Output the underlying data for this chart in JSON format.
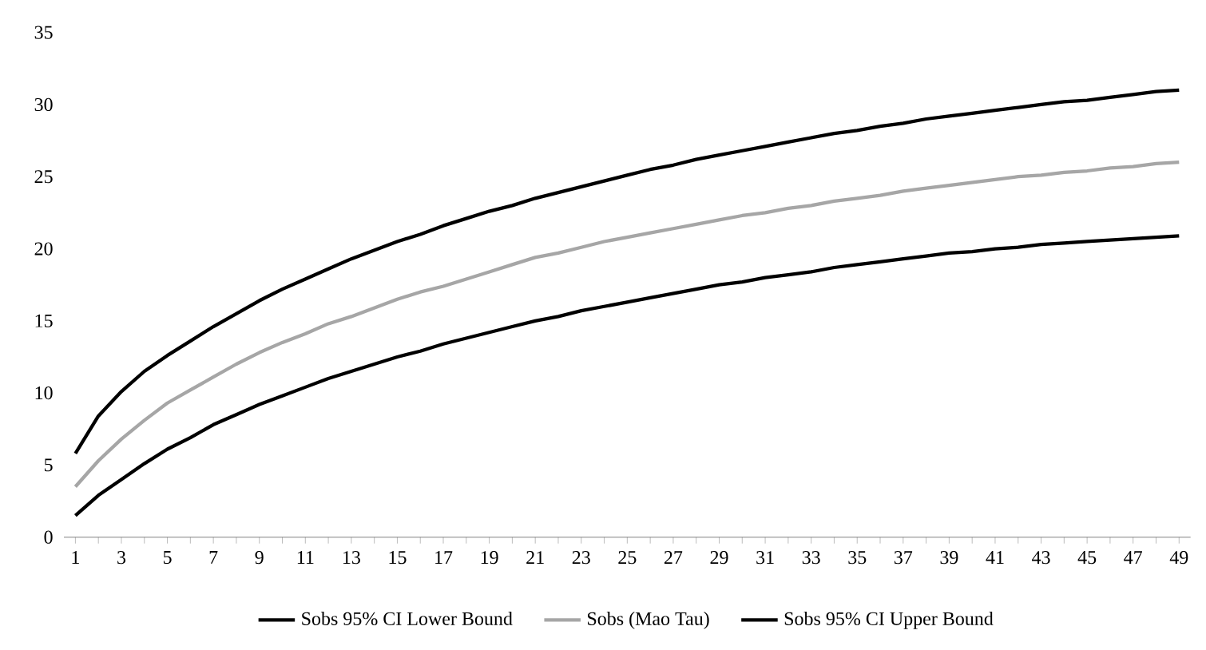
{
  "chart_data": {
    "type": "line",
    "categories": [
      "1",
      null,
      "3",
      null,
      "5",
      null,
      "7",
      null,
      "9",
      null,
      "11",
      null,
      "13",
      null,
      "15",
      null,
      "17",
      null,
      "19",
      null,
      "21",
      null,
      "23",
      null,
      "25",
      null,
      "27",
      null,
      "29",
      null,
      "31",
      null,
      "33",
      null,
      "35",
      null,
      "37",
      null,
      "39",
      null,
      "41",
      null,
      "43",
      null,
      "45",
      null,
      "47",
      null,
      "49"
    ],
    "series": [
      {
        "name": "Sobs 95% CI Lower Bound",
        "color": "#000000",
        "values": [
          1.5,
          2.9,
          4.0,
          5.1,
          6.1,
          6.9,
          7.8,
          8.5,
          9.2,
          9.8,
          10.4,
          11.0,
          11.5,
          12.0,
          12.5,
          12.9,
          13.4,
          13.8,
          14.2,
          14.6,
          15.0,
          15.3,
          15.7,
          16.0,
          16.3,
          16.6,
          16.9,
          17.2,
          17.5,
          17.7,
          18.0,
          18.2,
          18.4,
          18.7,
          18.9,
          19.1,
          19.3,
          19.5,
          19.7,
          19.8,
          20.0,
          20.1,
          20.3,
          20.4,
          20.5,
          20.6,
          20.7,
          20.8,
          20.9
        ]
      },
      {
        "name": "Sobs (Mao Tau)",
        "color": "#a6a6a6",
        "values": [
          3.5,
          5.3,
          6.8,
          8.1,
          9.3,
          10.2,
          11.1,
          12.0,
          12.8,
          13.5,
          14.1,
          14.8,
          15.3,
          15.9,
          16.5,
          17.0,
          17.4,
          17.9,
          18.4,
          18.9,
          19.4,
          19.7,
          20.1,
          20.5,
          20.8,
          21.1,
          21.4,
          21.7,
          22.0,
          22.3,
          22.5,
          22.8,
          23.0,
          23.3,
          23.5,
          23.7,
          24.0,
          24.2,
          24.4,
          24.6,
          24.8,
          25.0,
          25.1,
          25.3,
          25.4,
          25.6,
          25.7,
          25.9,
          26.0
        ]
      },
      {
        "name": "Sobs 95% CI Upper Bound",
        "color": "#000000",
        "values": [
          5.8,
          8.4,
          10.1,
          11.5,
          12.6,
          13.6,
          14.6,
          15.5,
          16.4,
          17.2,
          17.9,
          18.6,
          19.3,
          19.9,
          20.5,
          21.0,
          21.6,
          22.1,
          22.6,
          23.0,
          23.5,
          23.9,
          24.3,
          24.7,
          25.1,
          25.5,
          25.8,
          26.2,
          26.5,
          26.8,
          27.1,
          27.4,
          27.7,
          28.0,
          28.2,
          28.5,
          28.7,
          29.0,
          29.2,
          29.4,
          29.6,
          29.8,
          30.0,
          30.2,
          30.3,
          30.5,
          30.7,
          30.9,
          31.0
        ]
      }
    ],
    "ylim": [
      0,
      35
    ],
    "yticks": [
      0,
      5,
      10,
      15,
      20,
      25,
      30,
      35
    ],
    "legend": "bottom",
    "marker": "none",
    "line_style": "solid"
  }
}
